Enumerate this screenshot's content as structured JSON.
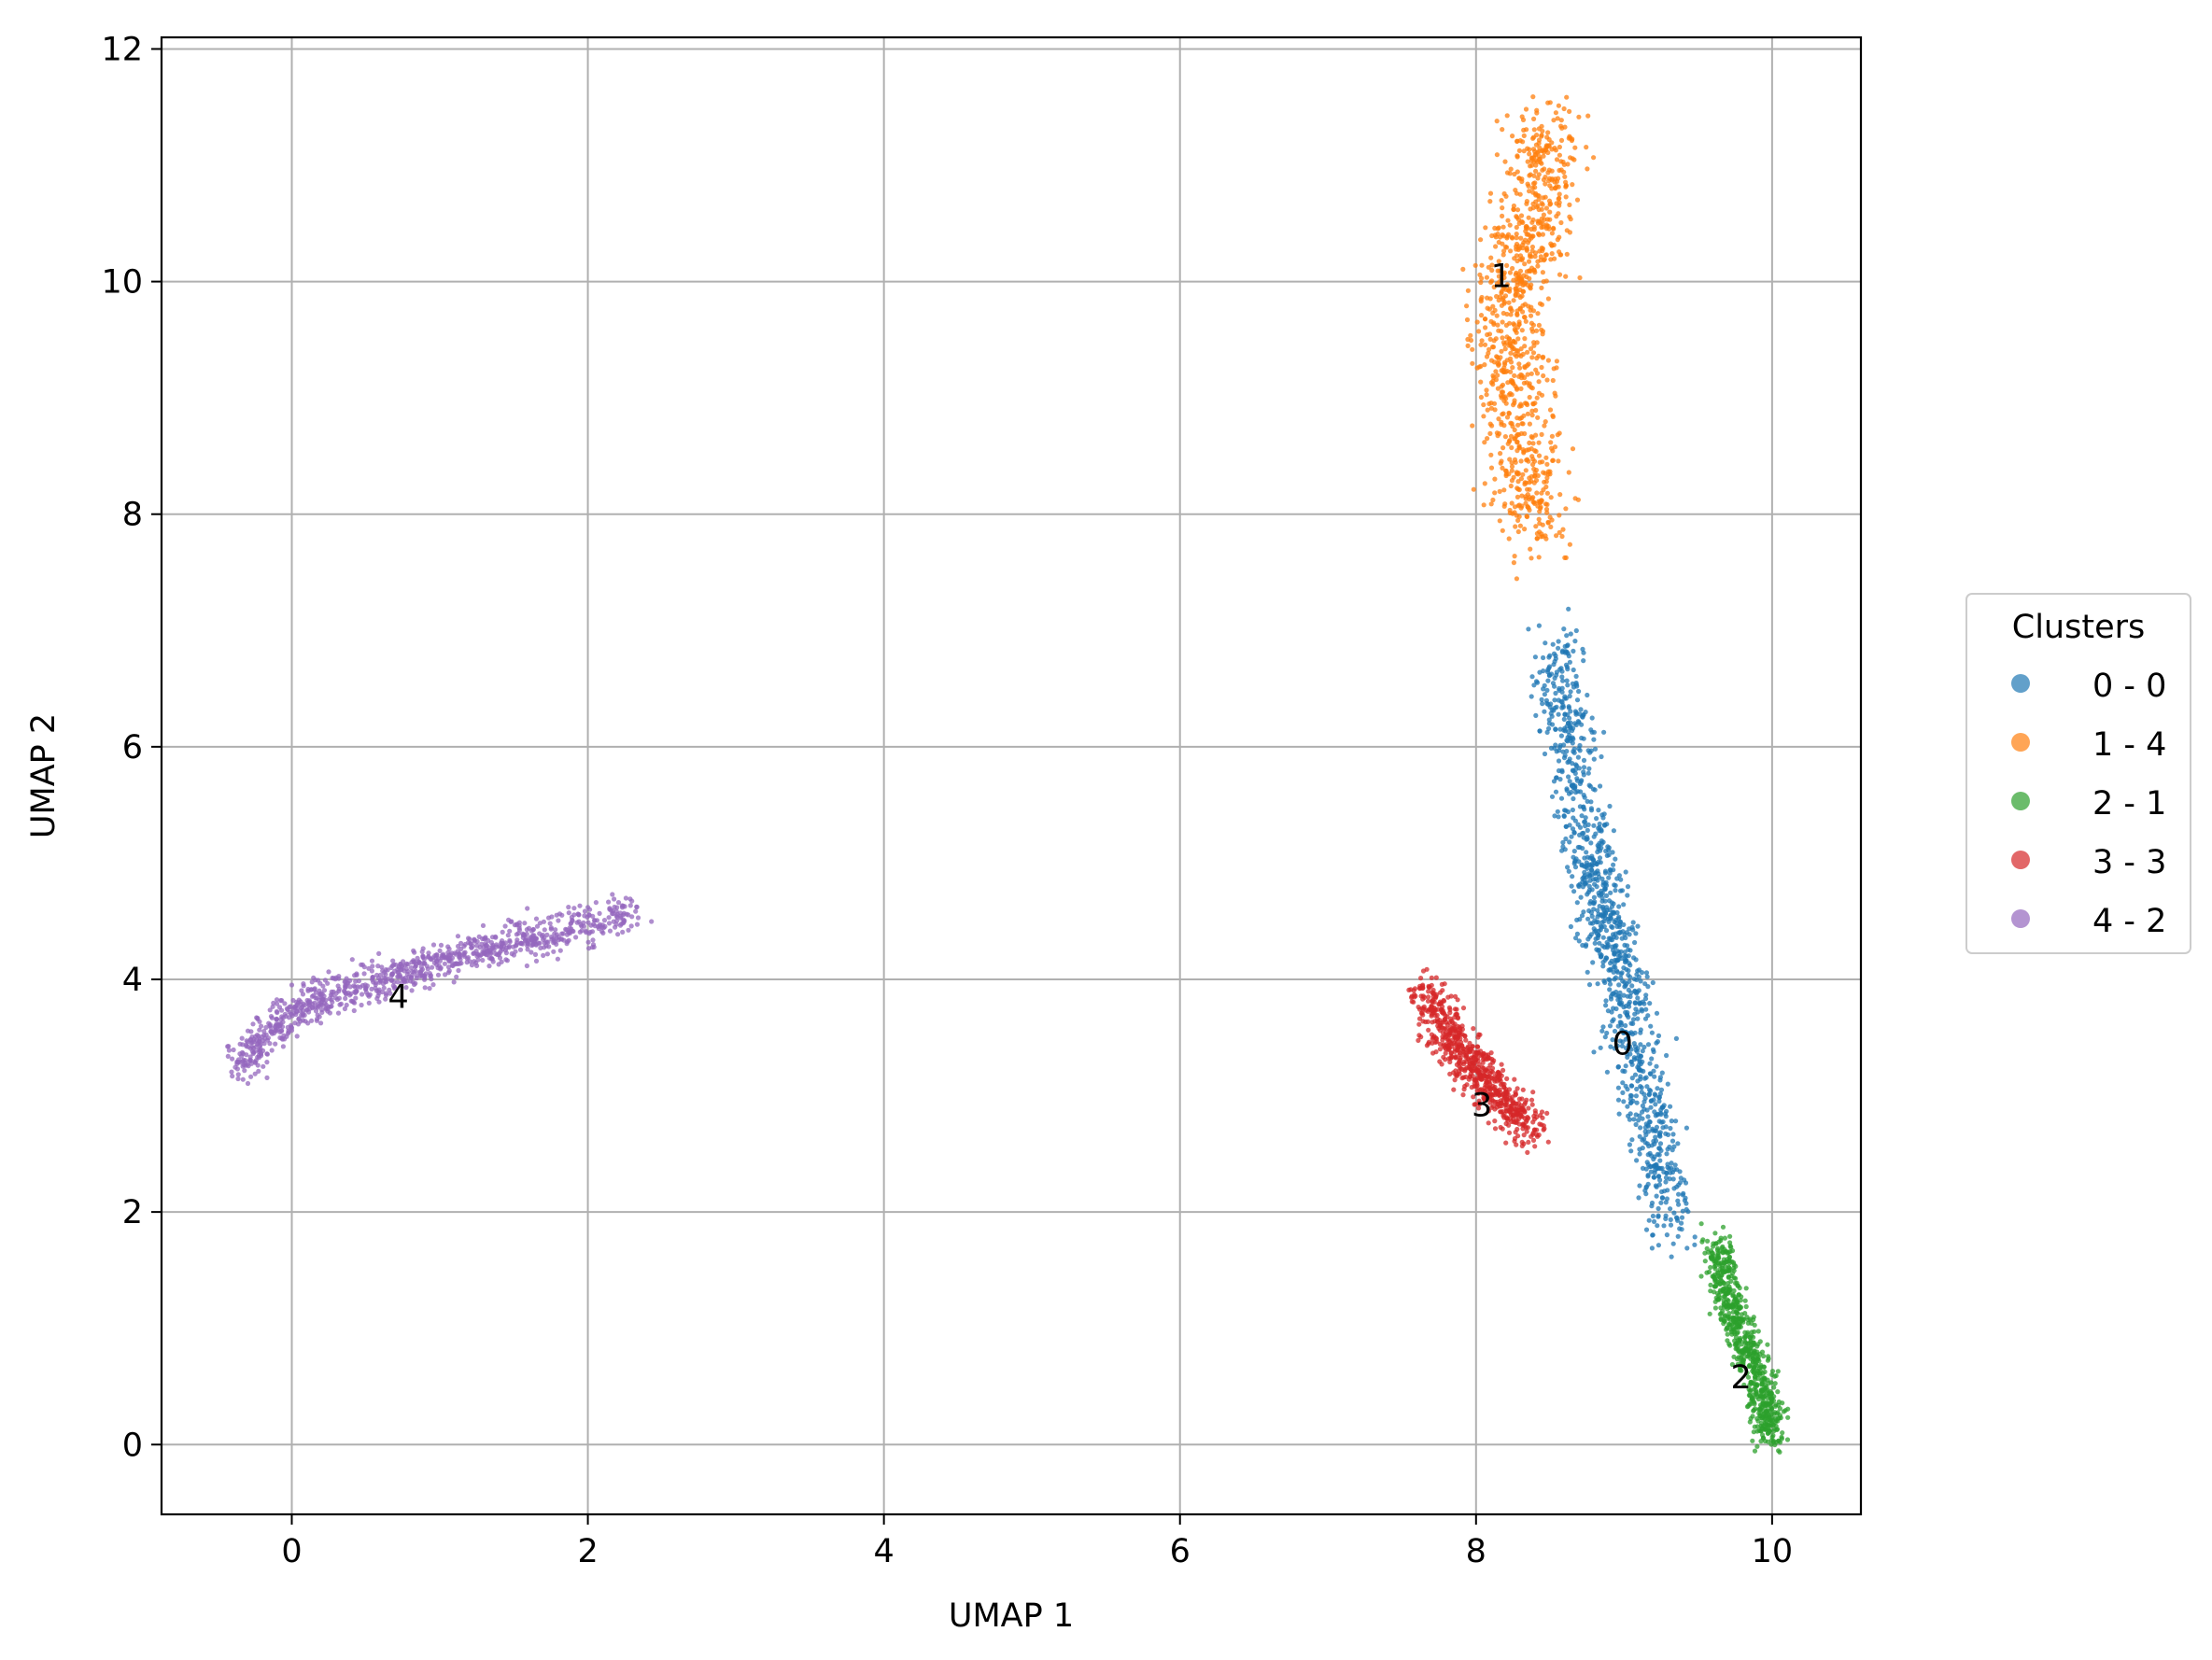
{
  "chart_data": {
    "type": "scatter",
    "xlabel": "UMAP 1",
    "ylabel": "UMAP 2",
    "xlim": [
      -0.88,
      10.6
    ],
    "ylim": [
      -0.6,
      12.1
    ],
    "xticks": [
      "0",
      "2",
      "4",
      "6",
      "8",
      "10"
    ],
    "yticks": [
      "0",
      "2",
      "4",
      "6",
      "8",
      "10",
      "12"
    ],
    "grid": true,
    "legend": {
      "title": "Clusters",
      "placement": "center-right outside",
      "entries": [
        "0 - 0",
        "1 - 4",
        "2 - 1",
        "3 - 3",
        "4 - 2"
      ]
    },
    "series": [
      {
        "name": "0 - 0",
        "color": "#1f77b4",
        "label": "0",
        "label_at": [
          8.92,
          3.45
        ],
        "points_outline": [
          [
            8.55,
            6.9
          ],
          [
            8.6,
            6.2
          ],
          [
            8.72,
            5.4
          ],
          [
            8.82,
            4.8
          ],
          [
            8.9,
            4.4
          ],
          [
            9.02,
            3.9
          ],
          [
            9.1,
            3.2
          ],
          [
            9.2,
            2.6
          ],
          [
            9.35,
            1.8
          ]
        ],
        "spread": 0.09
      },
      {
        "name": "1 - 4",
        "color": "#ff7f0e",
        "label": "1",
        "label_at": [
          8.1,
          10.05
        ],
        "points_outline": [
          [
            8.5,
            11.35
          ],
          [
            8.45,
            10.9
          ],
          [
            8.35,
            10.4
          ],
          [
            8.25,
            10.0
          ],
          [
            8.2,
            9.5
          ],
          [
            8.28,
            9.0
          ],
          [
            8.35,
            8.4
          ],
          [
            8.35,
            7.85
          ]
        ],
        "spread": 0.13
      },
      {
        "name": "2 - 1",
        "color": "#2ca02c",
        "label": "2",
        "label_at": [
          9.72,
          0.58
        ],
        "points_outline": [
          [
            9.62,
            1.75
          ],
          [
            9.68,
            1.35
          ],
          [
            9.78,
            1.0
          ],
          [
            9.88,
            0.7
          ],
          [
            9.95,
            0.35
          ],
          [
            10.0,
            0.05
          ]
        ],
        "spread": 0.055
      },
      {
        "name": "3 - 3",
        "color": "#d62728",
        "label": "3",
        "label_at": [
          7.97,
          2.92
        ],
        "points_outline": [
          [
            7.65,
            3.95
          ],
          [
            7.78,
            3.6
          ],
          [
            7.92,
            3.35
          ],
          [
            8.05,
            3.15
          ],
          [
            8.2,
            2.95
          ],
          [
            8.38,
            2.7
          ]
        ],
        "spread": 0.07
      },
      {
        "name": "4 - 2",
        "color": "#9467bd",
        "label": "4",
        "label_at": [
          0.65,
          3.85
        ],
        "points_outline": [
          [
            -0.35,
            3.25
          ],
          [
            -0.1,
            3.6
          ],
          [
            0.2,
            3.85
          ],
          [
            0.6,
            4.0
          ],
          [
            1.0,
            4.15
          ],
          [
            1.4,
            4.3
          ],
          [
            1.8,
            4.4
          ],
          [
            2.3,
            4.6
          ]
        ],
        "spread": 0.06
      }
    ]
  }
}
